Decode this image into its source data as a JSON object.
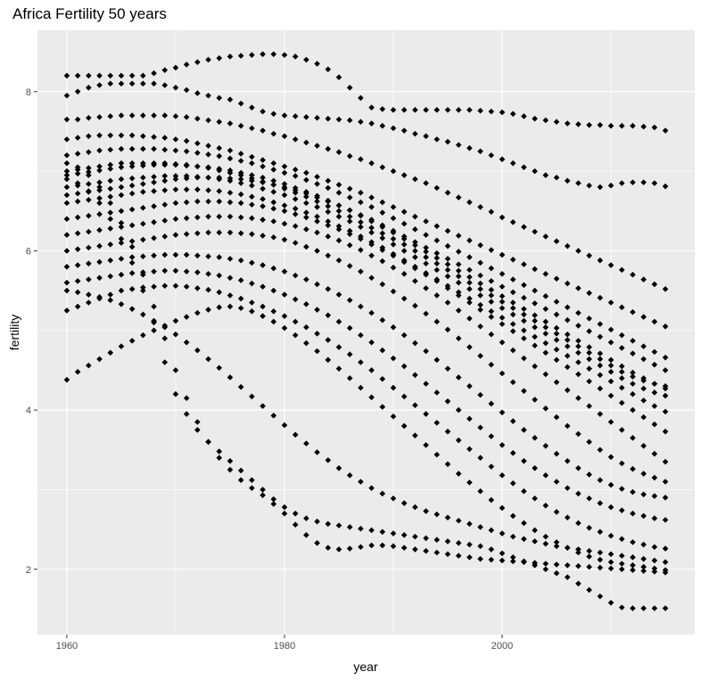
{
  "chart_data": {
    "type": "scatter",
    "title": "Africa Fertility 50 years",
    "xlabel": "year",
    "ylabel": "fertility",
    "xlim": [
      1957.3,
      2017.7
    ],
    "ylim": [
      1.18,
      8.77
    ],
    "x_ticks": [
      1960,
      1980,
      2000
    ],
    "y_ticks": [
      2,
      4,
      6,
      8
    ],
    "grid": true,
    "legend": "none",
    "colors": {
      "panel": "#ebebeb",
      "grid_major": "#ffffff",
      "point": "#000000",
      "tick_text": "#4d4d4d"
    },
    "x": [
      1960,
      1961,
      1962,
      1963,
      1964,
      1965,
      1966,
      1967,
      1968,
      1969,
      1970,
      1971,
      1972,
      1973,
      1974,
      1975,
      1976,
      1977,
      1978,
      1979,
      1980,
      1981,
      1982,
      1983,
      1984,
      1985,
      1986,
      1987,
      1988,
      1989,
      1990,
      1991,
      1992,
      1993,
      1994,
      1995,
      1996,
      1997,
      1998,
      1999,
      2000,
      2001,
      2002,
      2003,
      2004,
      2005,
      2006,
      2007,
      2008,
      2009,
      2010,
      2011,
      2012,
      2013,
      2014,
      2015
    ],
    "series": [
      {
        "values": [
          8.2,
          8.2,
          8.2,
          8.2,
          8.2,
          8.2,
          8.2,
          8.2,
          8.23,
          8.27,
          8.3,
          8.34,
          8.37,
          8.4,
          8.42,
          8.44,
          8.45,
          8.46,
          8.47,
          8.47,
          8.46,
          8.44,
          8.4,
          8.35,
          8.28,
          8.18,
          8.05,
          7.92,
          7.8,
          7.78,
          7.77,
          7.77,
          7.77,
          7.77,
          7.77,
          7.77,
          7.77,
          7.77,
          7.76,
          7.75,
          7.74,
          7.72,
          7.69,
          7.66,
          7.64,
          7.62,
          7.6,
          7.59,
          7.58,
          7.58,
          7.57,
          7.57,
          7.57,
          7.56,
          7.55,
          7.51
        ]
      },
      {
        "values": [
          7.95,
          8.0,
          8.05,
          8.08,
          8.1,
          8.1,
          8.1,
          8.1,
          8.1,
          8.08,
          8.05,
          8.02,
          7.98,
          7.95,
          7.92,
          7.9,
          7.85,
          7.8,
          7.75,
          7.72,
          7.7,
          7.69,
          7.68,
          7.67,
          7.66,
          7.65,
          7.64,
          7.62,
          7.6,
          7.57,
          7.54,
          7.51,
          7.47,
          7.44,
          7.4,
          7.37,
          7.33,
          7.29,
          7.25,
          7.2,
          7.15,
          7.1,
          7.05,
          7.0,
          6.95,
          6.92,
          6.88,
          6.85,
          6.82,
          6.8,
          6.82,
          6.85,
          6.86,
          6.86,
          6.85,
          6.81
        ]
      },
      {
        "values": [
          7.65,
          7.65,
          7.67,
          7.68,
          7.69,
          7.7,
          7.7,
          7.7,
          7.7,
          7.7,
          7.69,
          7.68,
          7.66,
          7.64,
          7.62,
          7.6,
          7.57,
          7.54,
          7.51,
          7.47,
          7.44,
          7.4,
          7.36,
          7.32,
          7.28,
          7.24,
          7.19,
          7.15,
          7.1,
          7.05,
          7.0,
          6.95,
          6.9,
          6.85,
          6.79,
          6.73,
          6.67,
          6.61,
          6.55,
          6.49,
          6.42,
          6.36,
          6.3,
          6.24,
          6.18,
          6.12,
          6.06,
          6.0,
          5.94,
          5.88,
          5.82,
          5.76,
          5.7,
          5.64,
          5.58,
          5.52
        ]
      },
      {
        "values": [
          7.4,
          7.42,
          7.44,
          7.45,
          7.45,
          7.45,
          7.45,
          7.44,
          7.43,
          7.42,
          7.4,
          7.38,
          7.35,
          7.32,
          7.29,
          7.26,
          7.22,
          7.18,
          7.14,
          7.1,
          7.06,
          7.02,
          6.98,
          6.93,
          6.88,
          6.83,
          6.78,
          6.73,
          6.67,
          6.61,
          6.55,
          6.49,
          6.43,
          6.37,
          6.31,
          6.25,
          6.19,
          6.13,
          6.07,
          6.01,
          5.95,
          5.89,
          5.83,
          5.77,
          5.71,
          5.65,
          5.59,
          5.53,
          5.47,
          5.41,
          5.35,
          5.29,
          5.23,
          5.17,
          5.11,
          5.05
        ]
      },
      {
        "values": [
          7.2,
          7.22,
          7.24,
          7.26,
          7.27,
          7.28,
          7.28,
          7.28,
          7.28,
          7.27,
          7.26,
          7.25,
          7.23,
          7.21,
          7.19,
          7.16,
          7.13,
          7.1,
          7.06,
          7.02,
          6.98,
          6.94,
          6.89,
          6.84,
          6.79,
          6.73,
          6.67,
          6.61,
          6.55,
          6.48,
          6.41,
          6.34,
          6.27,
          6.2,
          6.13,
          6.06,
          5.99,
          5.92,
          5.85,
          5.78,
          5.71,
          5.64,
          5.57,
          5.5,
          5.43,
          5.36,
          5.29,
          5.22,
          5.15,
          5.08,
          5.01,
          4.94,
          4.87,
          4.8,
          4.73,
          4.66
        ]
      },
      {
        "values": [
          7.0,
          7.02,
          7.04,
          7.06,
          7.08,
          7.1,
          7.1,
          7.1,
          7.1,
          7.1,
          7.09,
          7.08,
          7.06,
          7.04,
          7.01,
          6.98,
          6.95,
          6.91,
          6.87,
          6.83,
          6.78,
          6.73,
          6.68,
          6.62,
          6.56,
          6.5,
          6.43,
          6.36,
          6.29,
          6.22,
          6.15,
          6.08,
          6.0,
          5.92,
          5.84,
          5.76,
          5.68,
          5.6,
          5.52,
          5.44,
          5.36,
          5.28,
          5.2,
          5.12,
          5.04,
          4.96,
          4.88,
          4.8,
          4.72,
          4.64,
          4.56,
          4.48,
          4.42,
          4.37,
          4.33,
          4.3
        ]
      },
      {
        "values": [
          6.8,
          6.82,
          6.84,
          6.86,
          6.88,
          6.9,
          6.91,
          6.92,
          6.93,
          6.94,
          6.94,
          6.94,
          6.93,
          6.92,
          6.9,
          6.88,
          6.85,
          6.82,
          6.78,
          6.74,
          6.7,
          6.65,
          6.6,
          6.55,
          6.49,
          6.43,
          6.37,
          6.3,
          6.23,
          6.16,
          6.08,
          6.0,
          5.92,
          5.84,
          5.76,
          5.68,
          5.6,
          5.52,
          5.44,
          5.36,
          5.28,
          5.2,
          5.12,
          5.04,
          4.96,
          4.88,
          4.8,
          4.72,
          4.64,
          4.56,
          4.48,
          4.4,
          4.33,
          4.27,
          4.22,
          4.18
        ]
      },
      {
        "values": [
          6.6,
          6.62,
          6.64,
          6.66,
          6.68,
          6.7,
          6.72,
          6.74,
          6.75,
          6.76,
          6.77,
          6.77,
          6.77,
          6.76,
          6.75,
          6.73,
          6.71,
          6.68,
          6.65,
          6.61,
          6.57,
          6.53,
          6.48,
          6.43,
          6.37,
          6.31,
          6.25,
          6.18,
          6.11,
          6.04,
          5.96,
          5.88,
          5.8,
          5.72,
          5.64,
          5.56,
          5.48,
          5.4,
          5.32,
          5.24,
          5.16,
          5.08,
          5.0,
          4.92,
          4.84,
          4.76,
          4.68,
          4.6,
          4.52,
          4.44,
          4.36,
          4.28,
          4.2,
          4.12,
          4.05,
          3.98
        ]
      },
      {
        "values": [
          6.4,
          6.42,
          6.44,
          6.46,
          6.48,
          6.5,
          6.52,
          6.54,
          6.56,
          6.58,
          6.6,
          6.61,
          6.62,
          6.62,
          6.62,
          6.61,
          6.6,
          6.58,
          6.56,
          6.53,
          6.5,
          6.46,
          6.42,
          6.37,
          6.32,
          6.27,
          6.21,
          6.15,
          6.08,
          6.01,
          5.94,
          5.86,
          5.78,
          5.7,
          5.62,
          5.53,
          5.44,
          5.35,
          5.26,
          5.17,
          5.08,
          4.99,
          4.9,
          4.81,
          4.72,
          4.63,
          4.54,
          4.45,
          4.36,
          4.27,
          4.18,
          4.09,
          4.0,
          3.91,
          3.82,
          3.73
        ]
      },
      {
        "values": [
          6.2,
          6.22,
          6.24,
          6.26,
          6.28,
          6.3,
          6.32,
          6.34,
          6.36,
          6.38,
          6.4,
          6.41,
          6.42,
          6.43,
          6.43,
          6.43,
          6.42,
          6.41,
          6.39,
          6.37,
          6.34,
          6.31,
          6.27,
          6.23,
          6.18,
          6.13,
          6.07,
          6.01,
          5.94,
          5.87,
          5.79,
          5.71,
          5.62,
          5.53,
          5.44,
          5.35,
          5.25,
          5.15,
          5.05,
          4.95,
          4.85,
          4.75,
          4.65,
          4.55,
          4.45,
          4.35,
          4.25,
          4.15,
          4.05,
          3.95,
          3.85,
          3.75,
          3.65,
          3.55,
          3.45,
          3.35
        ]
      },
      {
        "values": [
          6.0,
          6.02,
          6.04,
          6.06,
          6.08,
          6.1,
          6.12,
          6.14,
          6.16,
          6.18,
          6.2,
          6.21,
          6.22,
          6.23,
          6.23,
          6.23,
          6.22,
          6.21,
          6.19,
          6.17,
          6.14,
          6.1,
          6.05,
          6.0,
          5.94,
          5.88,
          5.81,
          5.74,
          5.66,
          5.58,
          5.49,
          5.4,
          5.31,
          5.21,
          5.11,
          5.01,
          4.9,
          4.79,
          4.68,
          4.57,
          4.46,
          4.35,
          4.24,
          4.13,
          4.02,
          3.91,
          3.8,
          3.7,
          3.6,
          3.5,
          3.41,
          3.33,
          3.26,
          3.2,
          3.15,
          3.1
        ]
      },
      {
        "values": [
          5.8,
          5.82,
          5.84,
          5.86,
          5.88,
          5.9,
          5.92,
          5.93,
          5.94,
          5.95,
          5.95,
          5.95,
          5.94,
          5.93,
          5.92,
          5.9,
          5.88,
          5.85,
          5.82,
          5.78,
          5.74,
          5.69,
          5.64,
          5.58,
          5.52,
          5.45,
          5.38,
          5.3,
          5.22,
          5.13,
          5.04,
          4.94,
          4.84,
          4.74,
          4.63,
          4.52,
          4.41,
          4.3,
          4.19,
          4.08,
          3.97,
          3.86,
          3.75,
          3.65,
          3.55,
          3.45,
          3.36,
          3.27,
          3.19,
          3.12,
          3.06,
          3.01,
          2.97,
          2.94,
          2.92,
          2.9
        ]
      },
      {
        "values": [
          5.6,
          5.62,
          5.64,
          5.66,
          5.68,
          5.7,
          5.72,
          5.73,
          5.74,
          5.75,
          5.75,
          5.74,
          5.73,
          5.71,
          5.69,
          5.66,
          5.63,
          5.59,
          5.55,
          5.5,
          5.45,
          5.39,
          5.33,
          5.26,
          5.19,
          5.11,
          5.03,
          4.94,
          4.85,
          4.75,
          4.65,
          4.55,
          4.44,
          4.33,
          4.22,
          4.11,
          4.0,
          3.89,
          3.78,
          3.67,
          3.56,
          3.46,
          3.36,
          3.27,
          3.18,
          3.1,
          3.02,
          2.95,
          2.89,
          2.83,
          2.78,
          2.74,
          2.7,
          2.67,
          2.64,
          2.62
        ]
      },
      {
        "values": [
          5.25,
          5.3,
          5.35,
          5.4,
          5.45,
          5.5,
          5.52,
          5.54,
          5.55,
          5.56,
          5.56,
          5.55,
          5.53,
          5.51,
          5.48,
          5.44,
          5.4,
          5.35,
          5.3,
          5.24,
          5.18,
          5.11,
          5.04,
          4.96,
          4.88,
          4.79,
          4.7,
          4.6,
          4.5,
          4.39,
          4.28,
          4.17,
          4.06,
          3.95,
          3.84,
          3.73,
          3.62,
          3.51,
          3.4,
          3.29,
          3.18,
          3.08,
          2.98,
          2.89,
          2.8,
          2.72,
          2.65,
          2.58,
          2.52,
          2.47,
          2.42,
          2.38,
          2.34,
          2.31,
          2.28,
          2.26
        ]
      },
      {
        "values": [
          5.5,
          5.48,
          5.45,
          5.42,
          5.38,
          5.33,
          5.27,
          5.2,
          5.12,
          5.04,
          4.95,
          4.85,
          4.75,
          4.64,
          4.53,
          4.41,
          4.29,
          4.17,
          4.05,
          3.93,
          3.81,
          3.69,
          3.58,
          3.47,
          3.37,
          3.27,
          3.18,
          3.1,
          3.02,
          2.95,
          2.89,
          2.83,
          2.78,
          2.73,
          2.69,
          2.65,
          2.61,
          2.57,
          2.53,
          2.49,
          2.45,
          2.41,
          2.38,
          2.35,
          2.32,
          2.29,
          2.27,
          2.25,
          2.23,
          2.21,
          2.19,
          2.17,
          2.15,
          2.13,
          2.11,
          2.09
        ]
      },
      {
        "values": [
          4.38,
          4.48,
          4.56,
          4.64,
          4.72,
          4.8,
          4.87,
          4.94,
          5.0,
          5.06,
          5.12,
          5.17,
          5.22,
          5.26,
          5.29,
          5.3,
          5.28,
          5.24,
          5.18,
          5.11,
          5.03,
          4.94,
          4.84,
          4.74,
          4.63,
          4.52,
          4.4,
          4.28,
          4.16,
          4.04,
          3.92,
          3.8,
          3.68,
          3.56,
          3.44,
          3.32,
          3.2,
          3.09,
          2.98,
          2.87,
          2.77,
          2.67,
          2.58,
          2.49,
          2.41,
          2.34,
          2.27,
          2.21,
          2.16,
          2.12,
          2.09,
          2.07,
          2.05,
          2.03,
          2.01,
          1.99
        ]
      },
      {
        "values": [
          7.1,
          7.05,
          6.95,
          6.8,
          6.6,
          6.35,
          6.05,
          5.7,
          5.3,
          4.9,
          4.5,
          4.15,
          3.85,
          3.6,
          3.4,
          3.25,
          3.12,
          3.02,
          2.93,
          2.82,
          2.7,
          2.56,
          2.43,
          2.33,
          2.27,
          2.25,
          2.26,
          2.28,
          2.3,
          2.3,
          2.29,
          2.27,
          2.25,
          2.23,
          2.21,
          2.19,
          2.17,
          2.15,
          2.13,
          2.12,
          2.11,
          2.1,
          2.09,
          2.08,
          2.07,
          2.06,
          2.05,
          2.04,
          2.03,
          2.02,
          2.01,
          2.0,
          1.99,
          1.98,
          1.97,
          1.96
        ]
      },
      {
        "values": [
          6.9,
          6.85,
          6.75,
          6.6,
          6.4,
          6.15,
          5.85,
          5.5,
          5.1,
          4.6,
          4.2,
          3.95,
          3.75,
          3.6,
          3.48,
          3.36,
          3.24,
          3.12,
          3.0,
          2.88,
          2.78,
          2.7,
          2.64,
          2.6,
          2.57,
          2.55,
          2.53,
          2.51,
          2.49,
          2.47,
          2.45,
          2.43,
          2.41,
          2.39,
          2.37,
          2.35,
          2.33,
          2.31,
          2.29,
          2.25,
          2.2,
          2.15,
          2.1,
          2.05,
          2.0,
          1.95,
          1.9,
          1.82,
          1.74,
          1.66,
          1.58,
          1.52,
          1.51,
          1.51,
          1.51,
          1.51
        ]
      },
      {
        "values": [
          6.95,
          6.97,
          6.99,
          7.01,
          7.03,
          7.05,
          7.06,
          7.07,
          7.08,
          7.08,
          7.08,
          7.07,
          7.06,
          7.05,
          7.03,
          7.01,
          6.98,
          6.95,
          6.92,
          6.88,
          6.84,
          6.79,
          6.74,
          6.69,
          6.63,
          6.57,
          6.51,
          6.44,
          6.37,
          6.3,
          6.23,
          6.15,
          6.07,
          5.99,
          5.91,
          5.83,
          5.75,
          5.67,
          5.59,
          5.51,
          5.43,
          5.35,
          5.27,
          5.19,
          5.11,
          5.03,
          4.95,
          4.87,
          4.79,
          4.71,
          4.63,
          4.55,
          4.47,
          4.4,
          4.33,
          4.27
        ]
      },
      {
        "values": [
          6.7,
          6.72,
          6.74,
          6.76,
          6.78,
          6.8,
          6.82,
          6.84,
          6.86,
          6.88,
          6.9,
          6.91,
          6.92,
          6.92,
          6.92,
          6.91,
          6.9,
          6.88,
          6.86,
          6.83,
          6.8,
          6.76,
          6.72,
          6.67,
          6.62,
          6.57,
          6.51,
          6.45,
          6.39,
          6.32,
          6.25,
          6.18,
          6.11,
          6.04,
          5.97,
          5.9,
          5.83,
          5.76,
          5.69,
          5.62,
          5.55,
          5.48,
          5.41,
          5.34,
          5.27,
          5.2,
          5.13,
          5.06,
          4.99,
          4.92,
          4.85,
          4.78,
          4.71,
          4.64,
          4.57,
          4.5
        ]
      }
    ]
  }
}
